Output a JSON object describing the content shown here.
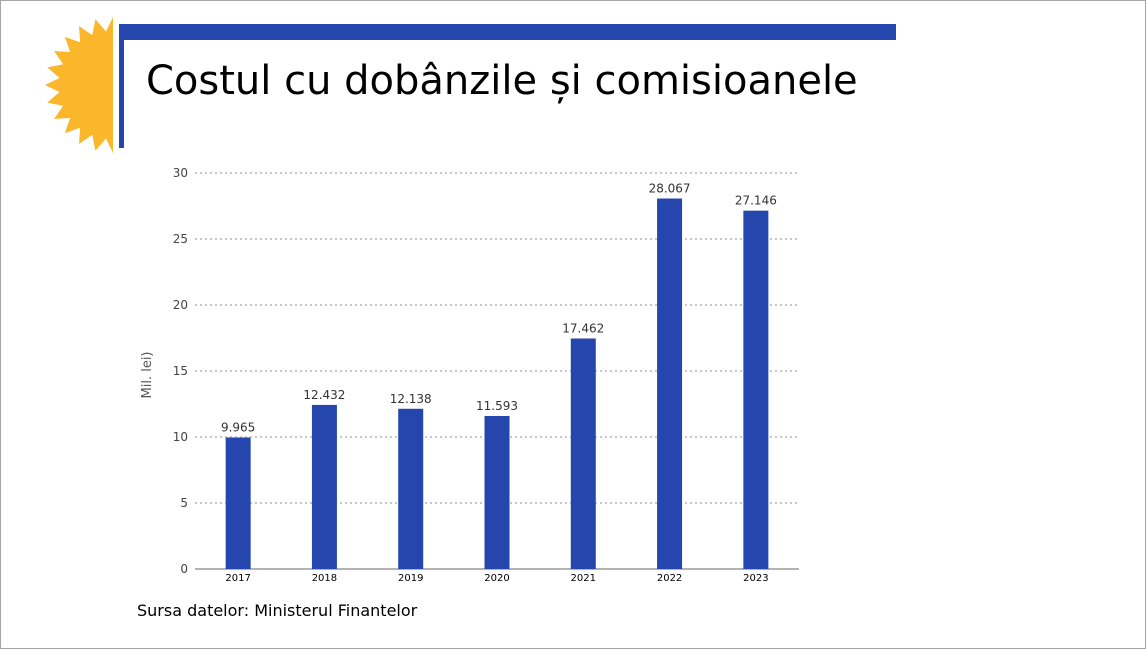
{
  "slide": {
    "title": "Costul cu dobânzile și comisioanele",
    "source": "Sursa datelor: Ministerul Finantelor",
    "decoration": {
      "logo": "sun-icon",
      "accent_color": "#2446ad",
      "sun_color": "#fbb72b"
    }
  },
  "chart_data": {
    "type": "bar",
    "title": "",
    "xlabel": "",
    "ylabel": "Mil. lei)",
    "categories": [
      "2017",
      "2018",
      "2019",
      "2020",
      "2021",
      "2022",
      "2023"
    ],
    "series": [
      {
        "values": [
          9.965,
          12.432,
          12.138,
          11.593,
          17.462,
          28.067,
          27.146
        ],
        "labels": [
          "9.965",
          "12.432",
          "12.138",
          "11.593",
          "17.462",
          "28.067",
          "27.146"
        ],
        "color": "#2446ad"
      }
    ],
    "ylim": [
      0,
      30
    ],
    "yticks": [
      0,
      5,
      10,
      15,
      20,
      25,
      30
    ],
    "grid": true,
    "legend": "none"
  }
}
